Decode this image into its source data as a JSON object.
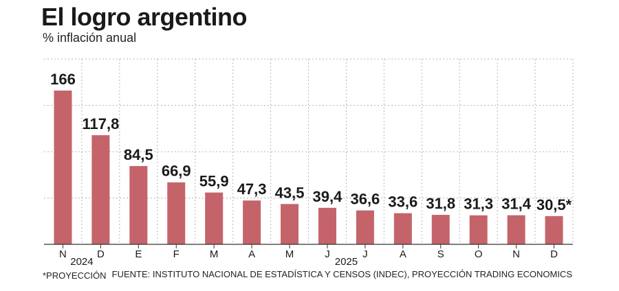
{
  "title": "El logro argentino",
  "subtitle": "% inflación anual",
  "footnote": "*PROYECCIÓN",
  "source": "FUENTE: INSTITUTO NACIONAL DE ESTADÍSTICA Y CENSOS (INDEC), PROYECCIÓN TRADING ECONOMICS",
  "colors": {
    "bar": "#c4646a",
    "grid": "#b5b5b5",
    "axis": "#333333",
    "text": "#1a1a1a"
  },
  "chart_data": {
    "type": "bar",
    "title": "El logro argentino",
    "subtitle": "% inflación anual",
    "categories": [
      "N",
      "D",
      "E",
      "F",
      "M",
      "A",
      "M",
      "J",
      "J",
      "A",
      "S",
      "O",
      "N",
      "D"
    ],
    "values": [
      166,
      117.8,
      84.5,
      66.9,
      55.9,
      47.3,
      43.5,
      39.4,
      36.6,
      33.6,
      31.8,
      31.3,
      31.4,
      30.5
    ],
    "value_labels": [
      "166",
      "117,8",
      "84,5",
      "66,9",
      "55,9",
      "47,3",
      "43,5",
      "39,4",
      "36,6",
      "33,6",
      "31,8",
      "31,3",
      "31,4",
      "30,5*"
    ],
    "year_labels": [
      {
        "label": "2024",
        "between": [
          0,
          1
        ]
      },
      {
        "label": "2025",
        "between": [
          7,
          8
        ]
      }
    ],
    "ylim": [
      0,
      200
    ],
    "grid": true,
    "xlabel": "",
    "ylabel": ""
  }
}
